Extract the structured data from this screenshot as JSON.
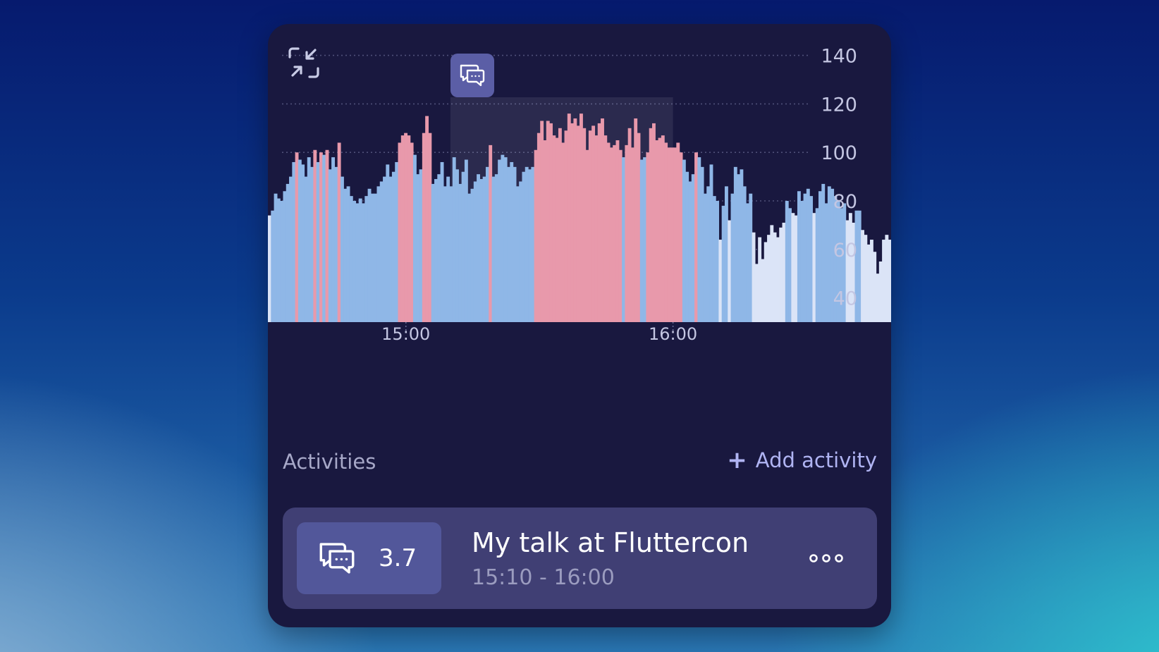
{
  "chart_data": {
    "type": "bar",
    "y_ticks": [
      "140",
      "120",
      "100",
      "80",
      "60",
      "40"
    ],
    "y_tick_values": [
      140,
      120,
      100,
      80,
      60,
      40
    ],
    "ylim": [
      30,
      143
    ],
    "x_ticks": [
      {
        "label": "15:00",
        "minutes": 0
      },
      {
        "label": "16:00",
        "minutes": 60
      }
    ],
    "x_minutes_range": [
      -31,
      109
    ],
    "highlight_minutes": [
      10,
      60
    ],
    "series_colors": {
      "high": "#e899ab",
      "mid": "#8fb7e7",
      "low": "#dbe4f7"
    },
    "grid": "horizontal-dotted",
    "values": [
      74,
      76,
      83,
      81,
      80,
      84,
      87,
      90,
      96,
      100,
      97,
      95,
      90,
      98,
      94,
      101,
      96,
      100,
      99,
      101,
      93,
      98,
      94,
      104,
      90,
      85,
      86,
      82,
      80,
      79,
      81,
      79,
      82,
      85,
      83,
      83,
      86,
      88,
      90,
      95,
      90,
      92,
      96,
      104,
      107,
      108,
      107,
      104,
      99,
      91,
      93,
      108,
      115,
      108,
      87,
      89,
      91,
      96,
      86,
      90,
      86,
      98,
      93,
      87,
      92,
      97,
      83,
      85,
      88,
      91,
      89,
      90,
      94,
      103,
      90,
      91,
      97,
      99,
      98,
      94,
      96,
      94,
      86,
      88,
      92,
      94,
      93,
      94,
      101,
      108,
      113,
      105,
      113,
      112,
      107,
      106,
      110,
      104,
      109,
      116,
      112,
      114,
      111,
      116,
      110,
      101,
      109,
      111,
      107,
      112,
      114,
      107,
      104,
      102,
      103,
      105,
      101,
      98,
      103,
      110,
      102,
      114,
      108,
      97,
      98,
      100,
      110,
      112,
      105,
      106,
      107,
      104,
      102,
      102,
      102,
      104,
      100,
      97,
      92,
      88,
      91,
      100,
      98,
      94,
      83,
      86,
      95,
      82,
      80,
      64,
      78,
      86,
      72,
      83,
      94,
      91,
      93,
      86,
      79,
      83,
      67,
      54,
      65,
      56,
      63,
      66,
      70,
      67,
      65,
      69,
      71,
      80,
      77,
      75,
      74,
      84,
      80,
      83,
      85,
      82,
      75,
      77,
      84,
      87,
      79,
      86,
      85,
      82,
      80,
      77,
      79,
      72,
      75,
      71,
      76,
      76,
      68,
      66,
      62,
      64,
      59,
      50,
      55,
      64,
      66,
      64
    ]
  },
  "highlight_icon": "chat-bubbles-icon",
  "collapse_icon": "collapse-arrows-icon",
  "activities": {
    "title": "Activities",
    "add_label": "Add activity",
    "items": [
      {
        "icon": "chat-bubbles-icon",
        "score": "3.7",
        "title": "My talk at Fluttercon",
        "time": "15:10 - 16:00"
      }
    ]
  },
  "more_icon": "more-dots-icon"
}
